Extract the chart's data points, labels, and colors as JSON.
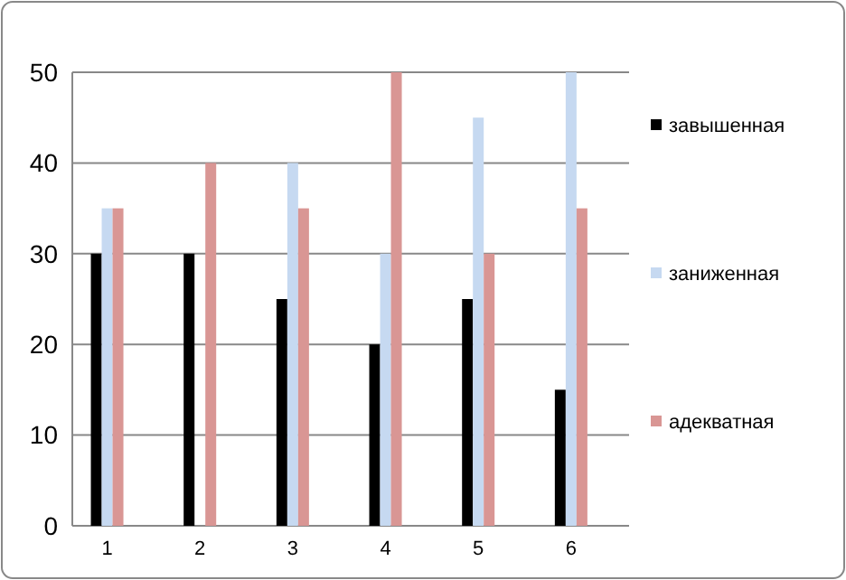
{
  "chart_data": {
    "type": "bar",
    "categories": [
      "1",
      "2",
      "3",
      "4",
      "5",
      "6"
    ],
    "series": [
      {
        "name": "завышенная",
        "color": "#000000",
        "values": [
          30,
          30,
          25,
          20,
          25,
          15
        ]
      },
      {
        "name": "заниженная",
        "color": "#c6d9f1",
        "values": [
          35,
          null,
          40,
          30,
          45,
          50
        ]
      },
      {
        "name": "адекватная",
        "color": "#d99694",
        "values": [
          35,
          40,
          35,
          50,
          30,
          35
        ]
      }
    ],
    "ylim": [
      0,
      50
    ],
    "yticks": [
      0,
      10,
      20,
      30,
      40,
      50
    ],
    "grid": "y",
    "legend": "right"
  }
}
